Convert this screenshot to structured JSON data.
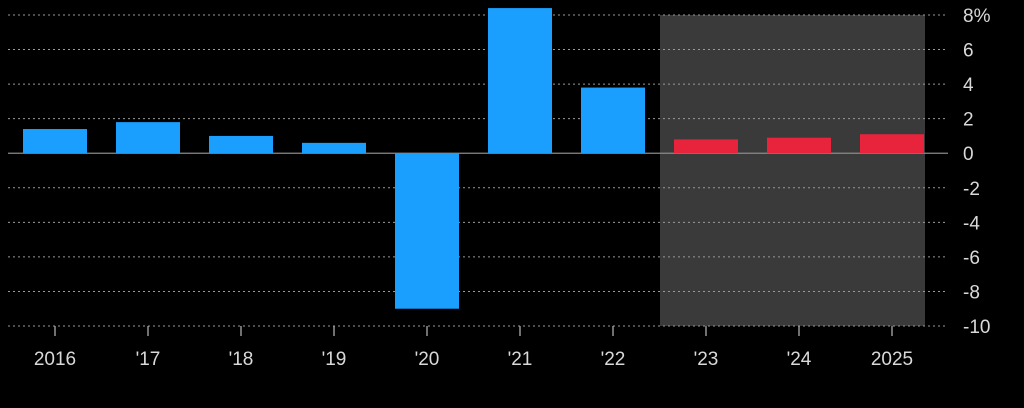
{
  "chart_data": {
    "type": "bar",
    "categories": [
      "2016",
      "'17",
      "'18",
      "'19",
      "'20",
      "'21",
      "'22",
      "'23",
      "'24",
      "2025"
    ],
    "values": [
      1.4,
      1.8,
      1.0,
      0.6,
      -9.0,
      8.4,
      3.8,
      0.8,
      0.9,
      1.1
    ],
    "forecast": [
      false,
      false,
      false,
      false,
      false,
      false,
      false,
      true,
      true,
      true
    ],
    "ylim": [
      -10,
      8
    ],
    "yticks": [
      8,
      6,
      4,
      2,
      0,
      -2,
      -4,
      -6,
      -8,
      -10
    ],
    "ytick_labels": [
      "8%",
      "6",
      "4",
      "2",
      "0",
      "-2",
      "-4",
      "-6",
      "-8",
      "-10"
    ],
    "y_axis_position": "right",
    "grid": true,
    "forecast_region": {
      "from_category": "'23",
      "to_category": "2025",
      "shaded": true
    },
    "colors": {
      "actual": "#1a9fff",
      "forecast": "#e8243c",
      "forecast_background": "#3a3a3a",
      "background": "#000000"
    }
  }
}
